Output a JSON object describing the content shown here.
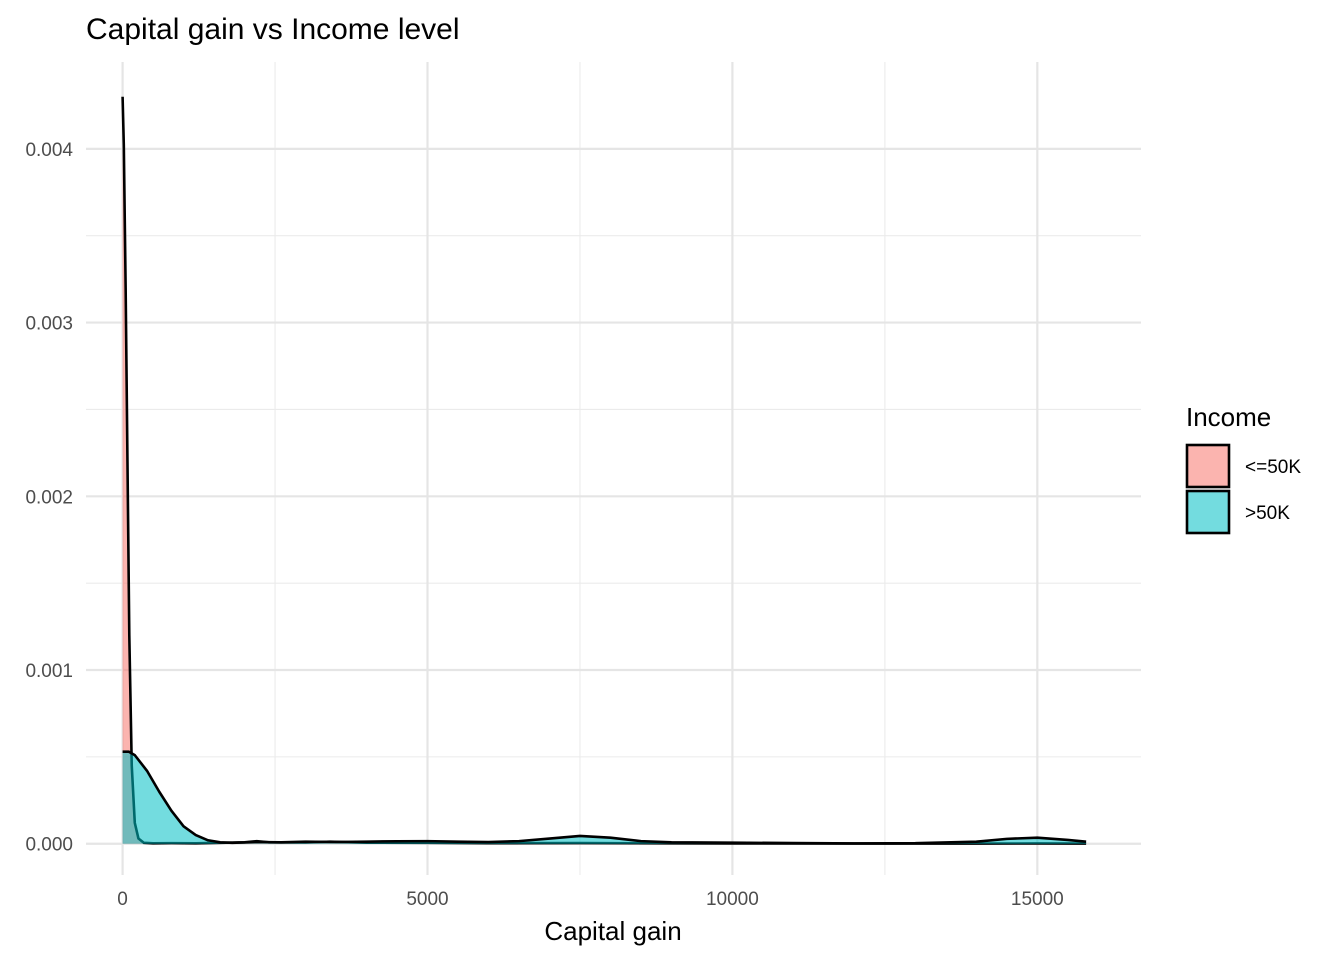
{
  "chart_data": {
    "type": "area",
    "title": "Capital gain vs Income level",
    "xlabel": "Capital gain",
    "ylabel": "",
    "xlim": [
      -600,
      16700
    ],
    "ylim": [
      -0.00018,
      0.0045
    ],
    "x_ticks": [
      0,
      5000,
      10000,
      15000
    ],
    "x_tick_labels": [
      "0",
      "5000",
      "10000",
      "15000"
    ],
    "y_ticks": [
      0,
      0.001,
      0.002,
      0.003,
      0.004
    ],
    "y_tick_labels": [
      "0.000",
      "0.001",
      "0.002",
      "0.003",
      "0.004"
    ],
    "grid": true,
    "legend": {
      "title": "Income",
      "position": "right"
    },
    "series": [
      {
        "name": "<=50K",
        "color": "#F8766D",
        "points": [
          [
            0,
            0.0043
          ],
          [
            20,
            0.00402
          ],
          [
            50,
            0.0032
          ],
          [
            80,
            0.0022
          ],
          [
            110,
            0.0012
          ],
          [
            150,
            0.00045
          ],
          [
            200,
            0.00012
          ],
          [
            260,
            3e-05
          ],
          [
            350,
            5e-06
          ],
          [
            500,
            2.5e-06
          ],
          [
            800,
            3.5e-06
          ],
          [
            1200,
            2.5e-06
          ],
          [
            2000,
            8e-06
          ],
          [
            2200,
            1.5e-05
          ],
          [
            2400,
            8e-06
          ],
          [
            3000,
            7e-06
          ],
          [
            3400,
            1.2e-05
          ],
          [
            4000,
            6e-06
          ],
          [
            5000,
            5e-06
          ],
          [
            6000,
            3e-06
          ],
          [
            7500,
            4e-06
          ],
          [
            9000,
            2e-06
          ],
          [
            10000,
            1.5e-06
          ],
          [
            12000,
            1.2e-06
          ],
          [
            14000,
            1e-06
          ],
          [
            15000,
            1.5e-06
          ],
          [
            15800,
            1e-06
          ]
        ]
      },
      {
        "name": ">50K",
        "color": "#00BFC4",
        "points": [
          [
            0,
            0.00053
          ],
          [
            100,
            0.00053
          ],
          [
            200,
            0.00051
          ],
          [
            400,
            0.00042
          ],
          [
            600,
            0.0003
          ],
          [
            800,
            0.00019
          ],
          [
            1000,
            0.0001
          ],
          [
            1200,
            5e-05
          ],
          [
            1400,
            2e-05
          ],
          [
            1600,
            8e-06
          ],
          [
            1800,
            5e-06
          ],
          [
            2200,
            1e-05
          ],
          [
            2600,
            8e-06
          ],
          [
            3000,
            1.2e-05
          ],
          [
            3500,
            1e-05
          ],
          [
            4000,
            1.2e-05
          ],
          [
            4500,
            1.4e-05
          ],
          [
            5000,
            1.5e-05
          ],
          [
            5500,
            1.2e-05
          ],
          [
            6000,
            1e-05
          ],
          [
            6500,
            1.5e-05
          ],
          [
            7000,
            3e-05
          ],
          [
            7500,
            4.5e-05
          ],
          [
            8000,
            3.5e-05
          ],
          [
            8500,
            1.5e-05
          ],
          [
            9000,
            8e-06
          ],
          [
            10000,
            6e-06
          ],
          [
            11000,
            4e-06
          ],
          [
            12000,
            2e-06
          ],
          [
            13000,
            3e-06
          ],
          [
            14000,
            1.2e-05
          ],
          [
            14500,
            2.8e-05
          ],
          [
            15000,
            3.5e-05
          ],
          [
            15500,
            2.2e-05
          ],
          [
            15800,
            1.2e-05
          ]
        ]
      }
    ]
  }
}
